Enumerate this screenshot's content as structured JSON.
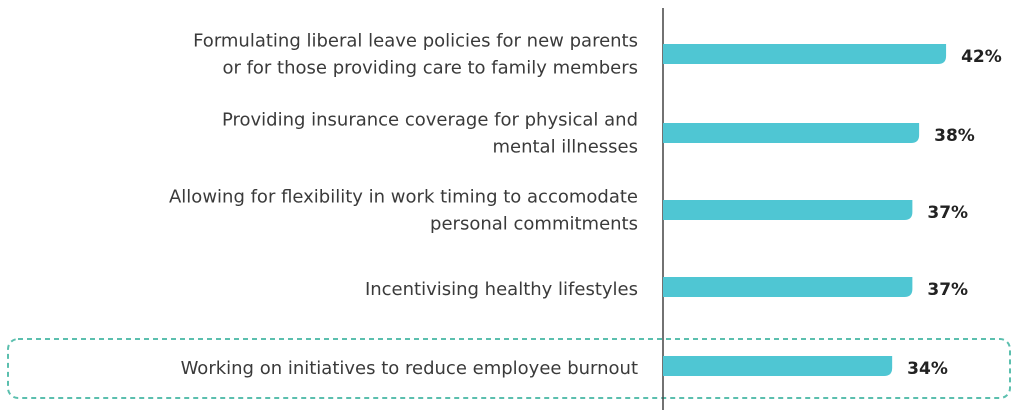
{
  "chart_data": {
    "type": "bar",
    "orientation": "horizontal",
    "categories": [
      [
        "Formulating liberal leave policies for new parents",
        "or for those providing care to family members"
      ],
      [
        "Providing insurance coverage for physical and",
        "mental illnesses"
      ],
      [
        "Allowing for flexibility in work timing to accomodate",
        "personal commitments"
      ],
      [
        "Incentivising healthy lifestyles"
      ],
      [
        "Working on initiatives to reduce employee burnout"
      ]
    ],
    "values": [
      42,
      38,
      37,
      37,
      34
    ],
    "value_labels": [
      "42%",
      "38%",
      "37%",
      "37%",
      "34%"
    ],
    "color": "#4fc6d3"
  }
}
